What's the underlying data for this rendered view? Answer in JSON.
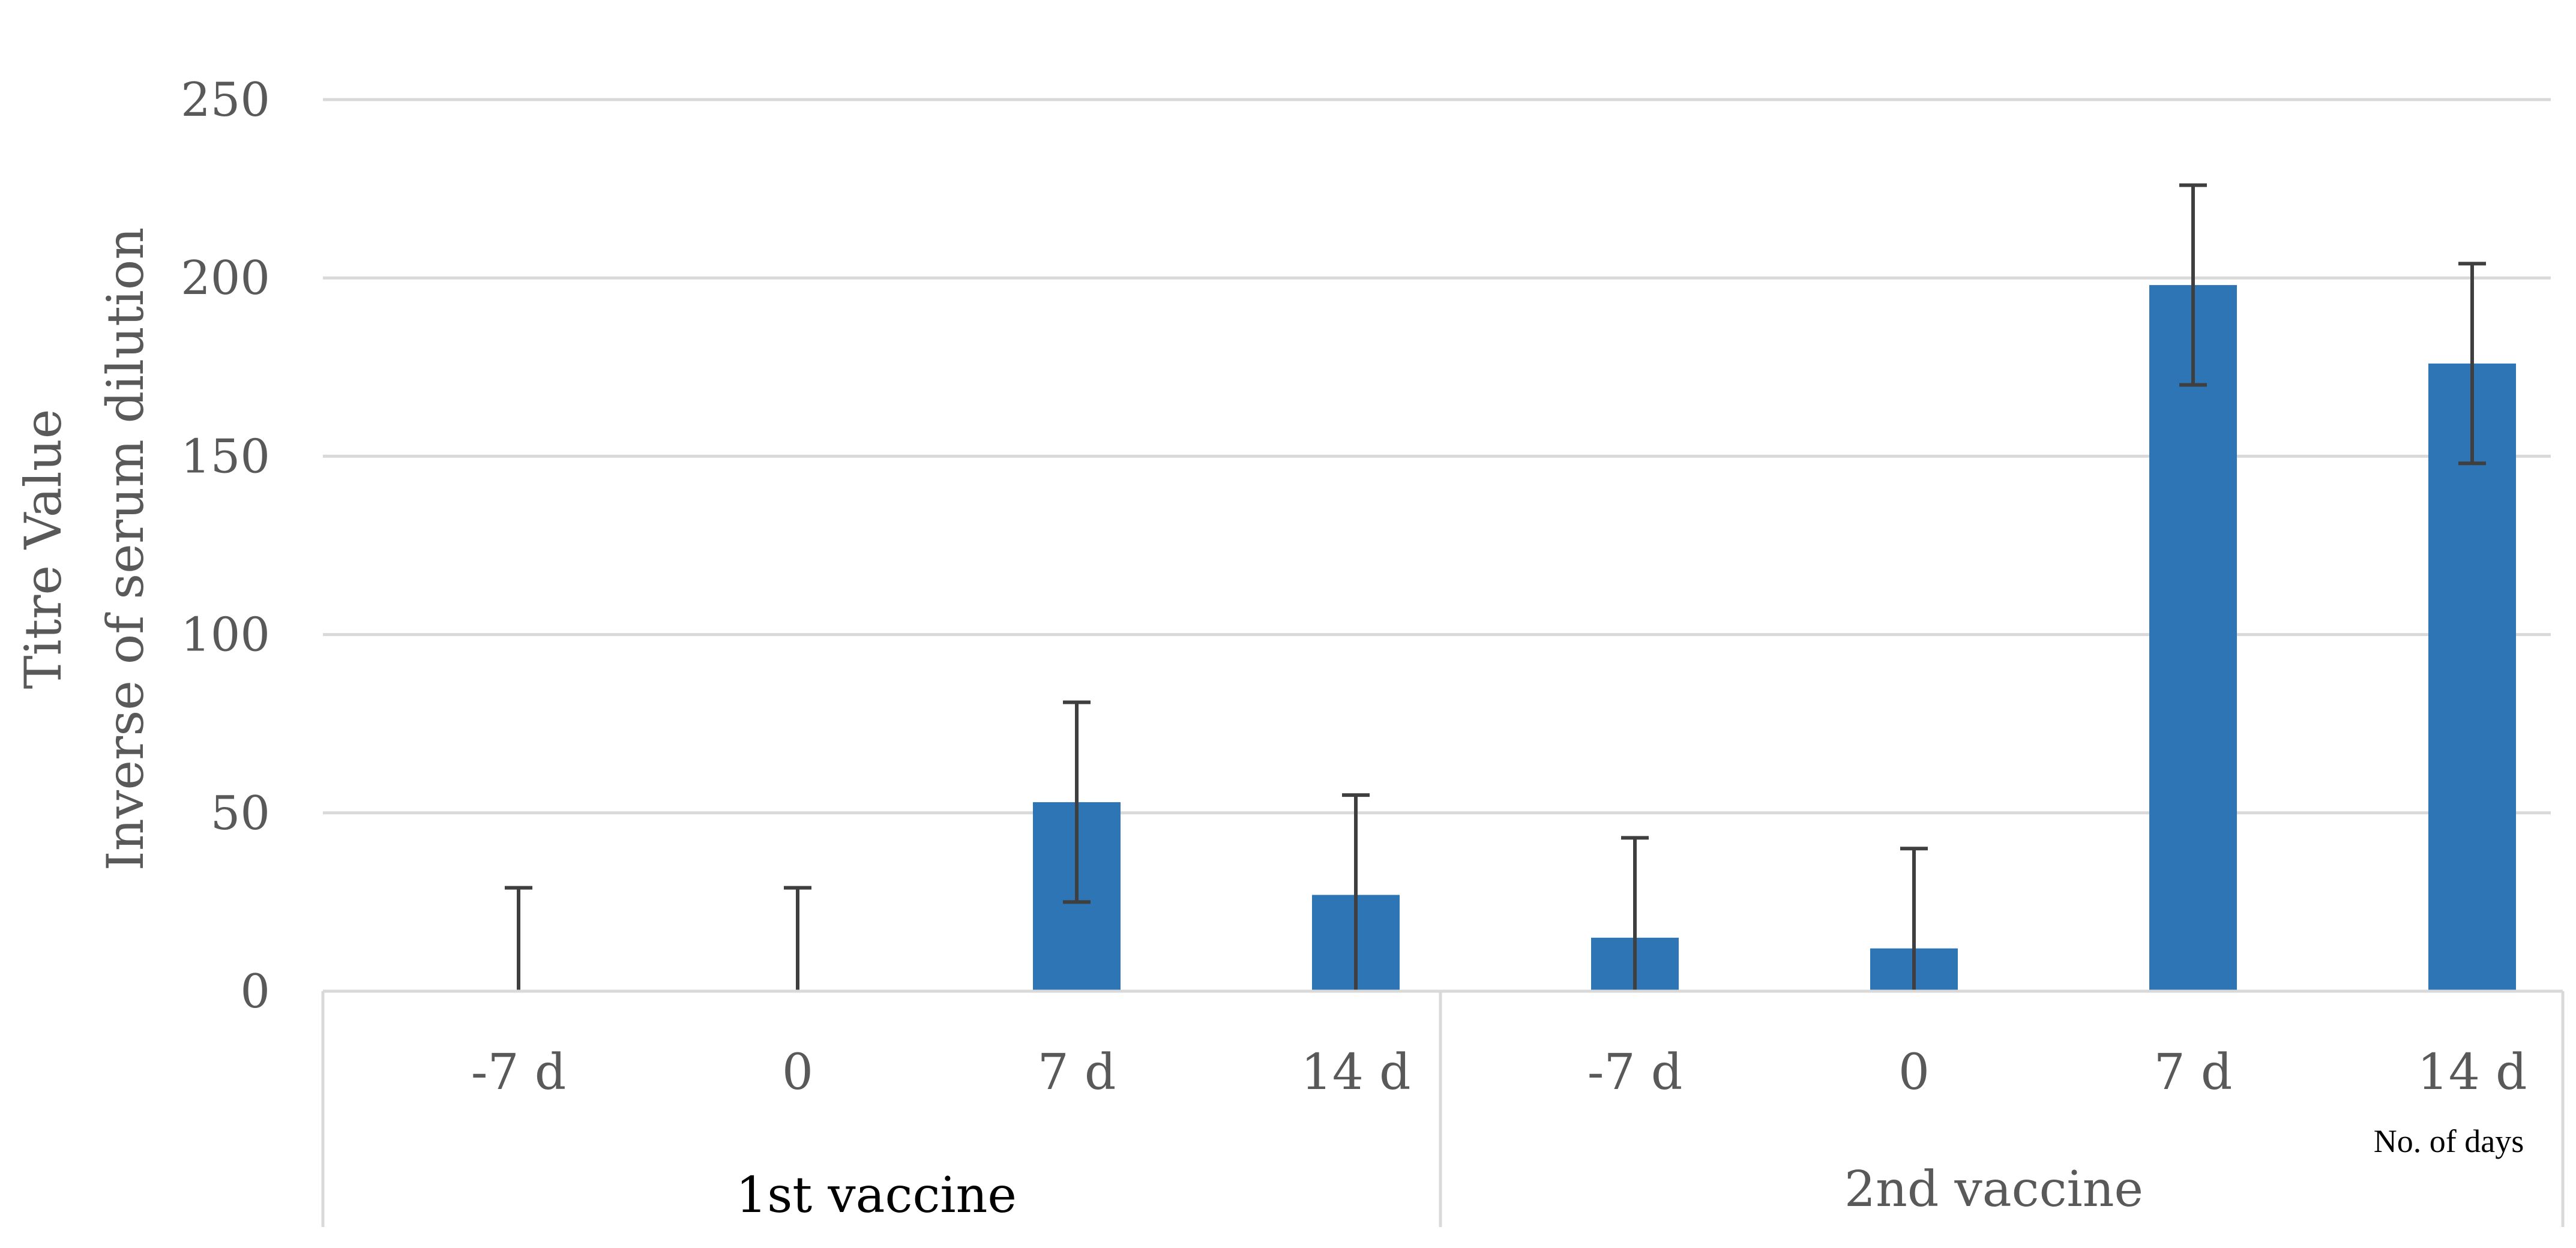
{
  "chart_data": {
    "type": "bar",
    "ylabel": [
      "Titre Value",
      "Inverse of serum dilution"
    ],
    "ylim": [
      0,
      250
    ],
    "yticks": [
      0,
      50,
      100,
      150,
      200,
      250
    ],
    "grid": true,
    "bar_color": "#2E75B6",
    "groups": [
      {
        "label": "1st vaccine",
        "categories": [
          "-7 d",
          "0",
          "7 d",
          "14 d"
        ],
        "values": [
          0,
          0,
          53,
          27
        ],
        "error": [
          29,
          29,
          28,
          28
        ]
      },
      {
        "label": "2nd vaccine",
        "categories": [
          "-7 d",
          "0",
          "7 d",
          "14 d"
        ],
        "values": [
          15,
          12,
          198,
          176
        ],
        "error": [
          28,
          28,
          28,
          28
        ]
      }
    ],
    "x_note": "No. of days"
  }
}
